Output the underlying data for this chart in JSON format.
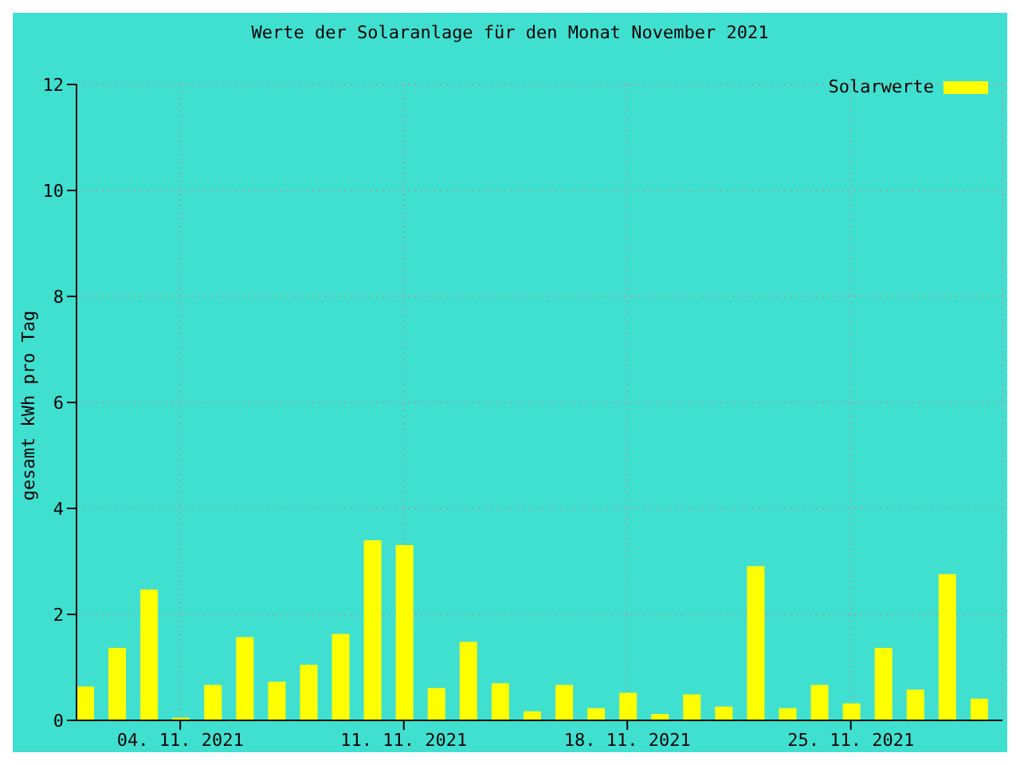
{
  "chart_data": {
    "type": "bar",
    "title": "Werte der Solaranlage für den Monat November 2021",
    "ylabel": "gesamt kWh pro Tag",
    "x": [
      "2021-11-01",
      "2021-11-02",
      "2021-11-03",
      "2021-11-04",
      "2021-11-05",
      "2021-11-06",
      "2021-11-07",
      "2021-11-08",
      "2021-11-09",
      "2021-11-10",
      "2021-11-11",
      "2021-11-12",
      "2021-11-13",
      "2021-11-14",
      "2021-11-15",
      "2021-11-16",
      "2021-11-17",
      "2021-11-18",
      "2021-11-19",
      "2021-11-20",
      "2021-11-21",
      "2021-11-22",
      "2021-11-23",
      "2021-11-24",
      "2021-11-25",
      "2021-11-26",
      "2021-11-27",
      "2021-11-28",
      "2021-11-29"
    ],
    "series": [
      {
        "name": "Solarwerte",
        "color": "#ffff00",
        "values": [
          0.64,
          1.37,
          2.47,
          0.05,
          0.67,
          1.57,
          0.73,
          1.05,
          1.63,
          3.4,
          3.31,
          0.61,
          1.48,
          0.7,
          0.17,
          0.67,
          0.23,
          0.52,
          0.12,
          0.49,
          0.26,
          2.91,
          0.23,
          0.67,
          0.32,
          1.37,
          0.58,
          2.76,
          0.41
        ]
      }
    ],
    "xlim": [
      "2021-10-31T18:00",
      "2021-11-29T18:00"
    ],
    "xticks": [
      {
        "value": "2021-11-04",
        "label": "04. 11. 2021"
      },
      {
        "value": "2021-11-11",
        "label": "11. 11. 2021"
      },
      {
        "value": "2021-11-18",
        "label": "18. 11. 2021"
      },
      {
        "value": "2021-11-25",
        "label": "25. 11. 2021"
      }
    ],
    "ylim": [
      0,
      12
    ],
    "yticks": [
      0,
      2,
      4,
      6,
      8,
      10,
      12
    ],
    "grid": true,
    "legend": "top right"
  }
}
